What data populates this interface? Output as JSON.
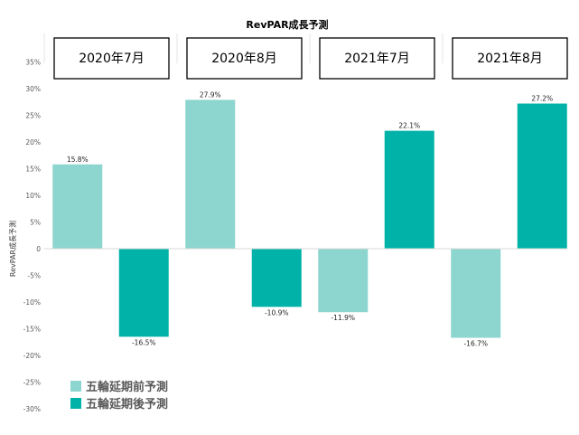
{
  "chart_data": {
    "type": "bar",
    "title": "RevPAR成長予測",
    "ylabel": "RevPAR成長予測",
    "categories": [
      "2020年7月",
      "2020年8月",
      "2021年7月",
      "2021年8月"
    ],
    "series": [
      {
        "name": "五輪延期前予測",
        "color": "#8dd5cf",
        "values": [
          15.8,
          27.9,
          -11.9,
          -16.7
        ],
        "labels": [
          "15.8%",
          "27.9%",
          "-11.9%",
          "-16.7%"
        ]
      },
      {
        "name": "五輪延期後予測",
        "color": "#00b2a8",
        "values": [
          -16.5,
          -10.9,
          22.1,
          27.2
        ],
        "labels": [
          "-16.5%",
          "-10.9%",
          "22.1%",
          "27.2%"
        ]
      }
    ],
    "ylim": [
      -30,
      35
    ],
    "yticks": [
      {
        "value": 35,
        "label": "35%"
      },
      {
        "value": 30,
        "label": "30%"
      },
      {
        "value": 25,
        "label": "25%"
      },
      {
        "value": 20,
        "label": "20%"
      },
      {
        "value": 15,
        "label": "15%"
      },
      {
        "value": 10,
        "label": "10%"
      },
      {
        "value": 5,
        "label": "5%"
      },
      {
        "value": 0,
        "label": "0"
      },
      {
        "value": -5,
        "label": "-5%"
      },
      {
        "value": -10,
        "label": "-10%"
      },
      {
        "value": -15,
        "label": "-15%"
      },
      {
        "value": -20,
        "label": "-20%"
      },
      {
        "value": -25,
        "label": "-25%"
      },
      {
        "value": -30,
        "label": "-30%"
      }
    ],
    "grid": false,
    "legend": "bottom-left"
  }
}
